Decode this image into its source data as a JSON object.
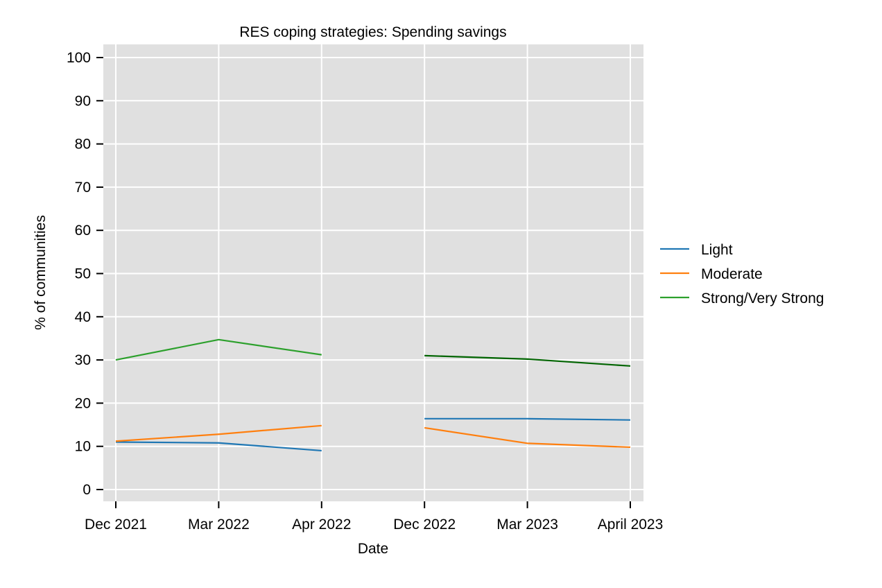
{
  "chart_data": {
    "type": "line",
    "title": "RES coping strategies: Spending savings",
    "xlabel": "Date",
    "ylabel": "% of communities",
    "categories": [
      "Dec 2021",
      "Mar 2022",
      "Apr 2022",
      "Dec 2022",
      "Mar 2023",
      "April 2023"
    ],
    "ylim": [
      0,
      100
    ],
    "yticks": [
      0,
      10,
      20,
      30,
      40,
      50,
      60,
      70,
      80,
      90,
      100
    ],
    "grid": true,
    "legend_position": "right",
    "background_color": "#e0e0e0",
    "segments": [
      {
        "series": "Light",
        "color": "#1f77b4",
        "x": [
          "Dec 2021",
          "Mar 2022",
          "Apr 2022"
        ],
        "y": [
          11.0,
          10.8,
          9.0
        ]
      },
      {
        "series": "Moderate",
        "color": "#ff7f0e",
        "x": [
          "Dec 2021",
          "Mar 2022",
          "Apr 2022"
        ],
        "y": [
          11.2,
          12.8,
          14.8
        ]
      },
      {
        "series": "Strong/Very Strong",
        "color": "#2ca02c",
        "x": [
          "Dec 2021",
          "Mar 2022",
          "Apr 2022"
        ],
        "y": [
          30.0,
          34.7,
          31.2
        ]
      },
      {
        "series": "Light",
        "color": "#1f77b4",
        "x": [
          "Dec 2022",
          "Mar 2023",
          "April 2023"
        ],
        "y": [
          16.4,
          16.4,
          16.1
        ]
      },
      {
        "series": "Moderate",
        "color": "#ff7f0e",
        "x": [
          "Dec 2022",
          "Mar 2023",
          "April 2023"
        ],
        "y": [
          14.3,
          10.7,
          9.8
        ]
      },
      {
        "series": "Strong/Very Strong",
        "color": "#006400",
        "x": [
          "Dec 2022",
          "Mar 2023",
          "April 2023"
        ],
        "y": [
          31.0,
          30.2,
          28.6
        ]
      }
    ],
    "legend": [
      {
        "name": "Light",
        "color": "#1f77b4"
      },
      {
        "name": "Moderate",
        "color": "#ff7f0e"
      },
      {
        "name": "Strong/Very Strong",
        "color": "#2ca02c"
      }
    ]
  }
}
